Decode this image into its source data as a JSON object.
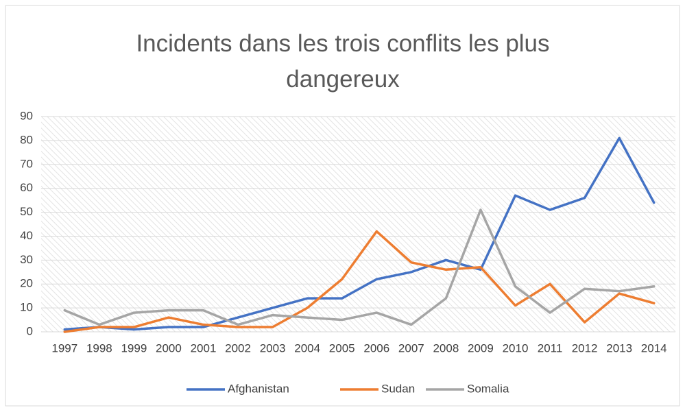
{
  "chart_data": {
    "type": "line",
    "title": "Incidents dans les trois conflits les plus dangereux",
    "categories": [
      "1997",
      "1998",
      "1999",
      "2000",
      "2001",
      "2002",
      "2003",
      "2004",
      "2005",
      "2006",
      "2007",
      "2008",
      "2009",
      "2010",
      "2011",
      "2012",
      "2013",
      "2014"
    ],
    "series": [
      {
        "name": "Afghanistan",
        "color": "#4472c4",
        "values": [
          1,
          2,
          1,
          2,
          2,
          6,
          10,
          14,
          14,
          22,
          25,
          30,
          26,
          57,
          51,
          56,
          81,
          54
        ]
      },
      {
        "name": "Sudan",
        "color": "#ed7d31",
        "values": [
          0,
          2,
          2,
          6,
          3,
          2,
          2,
          10,
          22,
          42,
          29,
          26,
          27,
          11,
          20,
          4,
          16,
          12
        ]
      },
      {
        "name": "Somalia",
        "color": "#a5a5a5",
        "values": [
          9,
          3,
          8,
          9,
          9,
          3,
          7,
          6,
          5,
          8,
          3,
          14,
          51,
          19,
          8,
          18,
          17,
          19
        ]
      }
    ],
    "ylim": [
      0,
      90
    ],
    "yticks": [
      0,
      10,
      20,
      30,
      40,
      50,
      60,
      70,
      80,
      90
    ],
    "grid": true,
    "legend": "bottom"
  }
}
